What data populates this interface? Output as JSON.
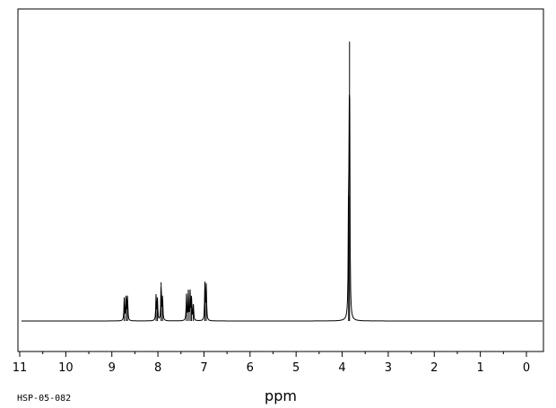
{
  "chart_data": {
    "type": "line",
    "xlabel": "ppm",
    "ylabel": "",
    "xlim": [
      11,
      0
    ],
    "x_reversed": true,
    "ylim": [
      0,
      1
    ],
    "grid": false,
    "spectrum_code": "HSP-05-082",
    "x_ticks": [
      "11",
      "10",
      "9",
      "8",
      "7",
      "6",
      "5",
      "4",
      "3",
      "2",
      "1",
      "0"
    ],
    "x_tick_values": [
      11,
      10,
      9,
      8,
      7,
      6,
      5,
      4,
      3,
      2,
      1,
      0
    ],
    "series": [
      {
        "peaks": [
          {
            "x": 8.73,
            "y": 0.083
          },
          {
            "x": 8.69,
            "y": 0.089
          },
          {
            "x": 8.66,
            "y": 0.089
          },
          {
            "x": 8.04,
            "y": 0.089
          },
          {
            "x": 8.01,
            "y": 0.077
          },
          {
            "x": 7.93,
            "y": 0.136
          },
          {
            "x": 7.9,
            "y": 0.089
          },
          {
            "x": 7.38,
            "y": 0.092
          },
          {
            "x": 7.34,
            "y": 0.101
          },
          {
            "x": 7.3,
            "y": 0.101
          },
          {
            "x": 7.27,
            "y": 0.08
          },
          {
            "x": 7.23,
            "y": 0.059
          },
          {
            "x": 6.98,
            "y": 0.13
          },
          {
            "x": 6.95,
            "y": 0.124
          },
          {
            "x": 3.84,
            "y": 0.98
          },
          {
            "x": 3.86,
            "y": 0.44
          }
        ]
      }
    ]
  }
}
